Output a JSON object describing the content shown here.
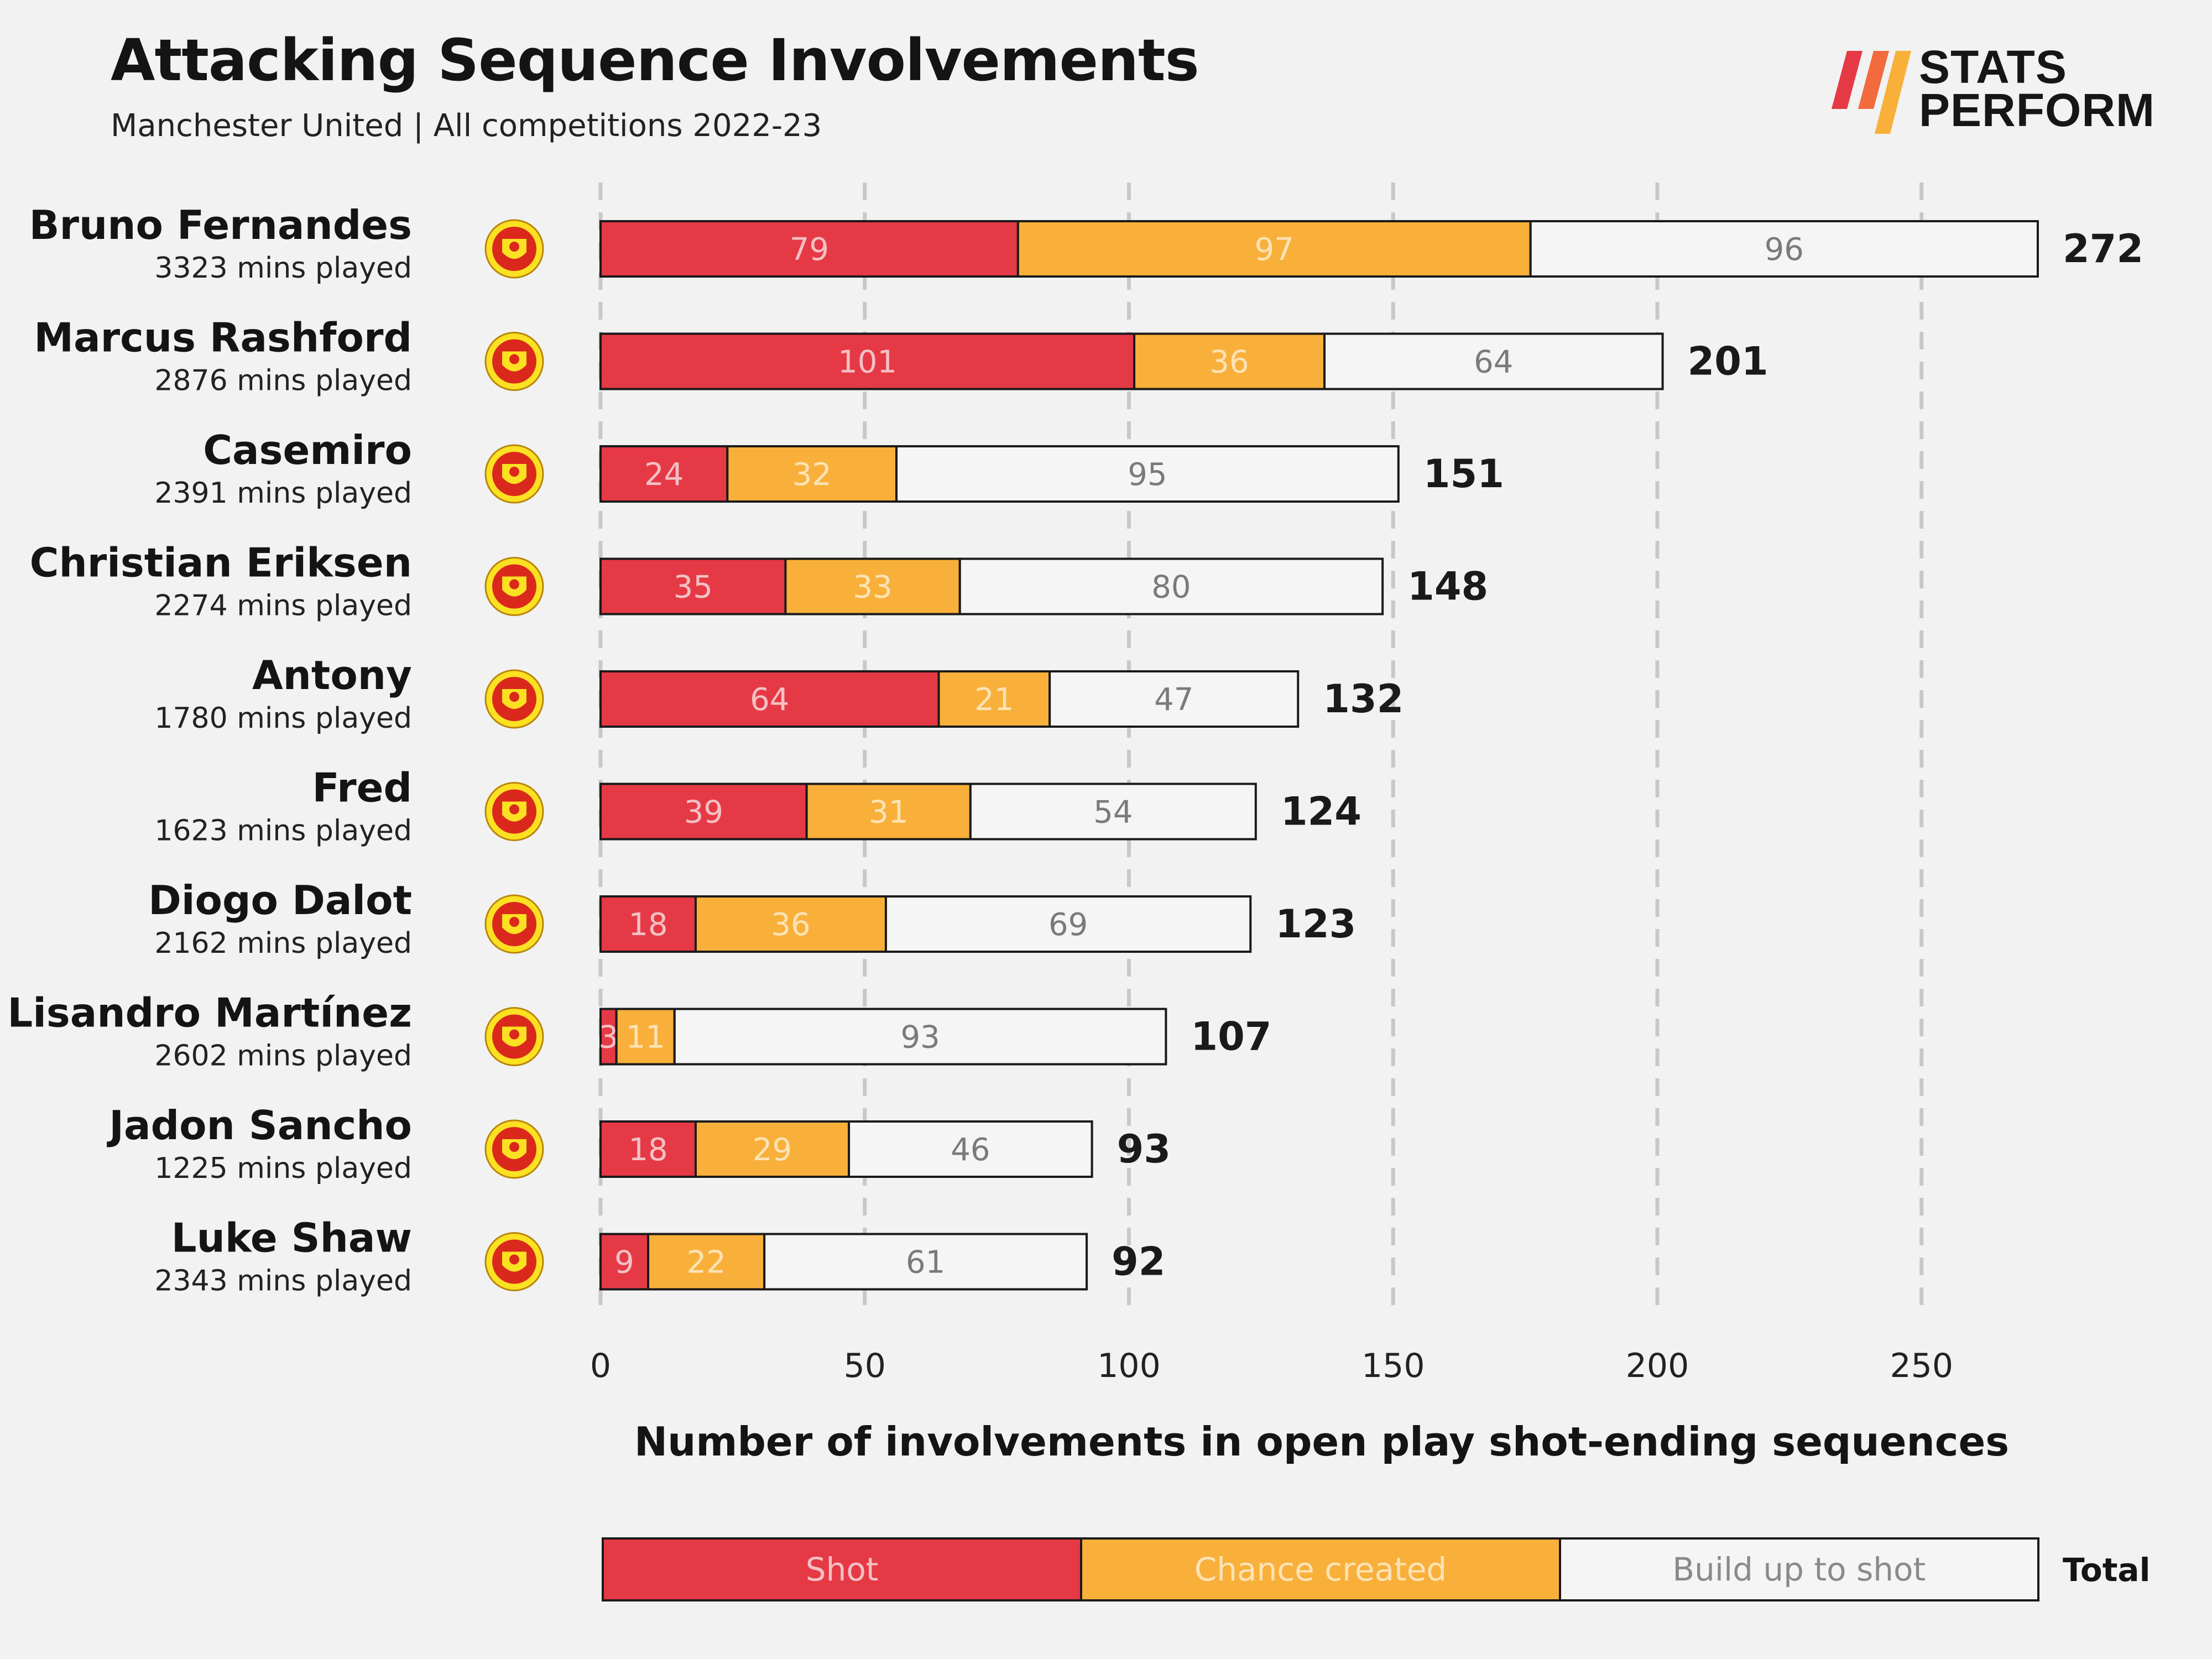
{
  "title": "Attacking Sequence Involvements",
  "subtitle": "Manchester United | All competitions 2022-23",
  "brand": {
    "line1": "STATS",
    "line2": "PERFORM"
  },
  "colors": {
    "shot": "#e63946",
    "chance": "#f8b03b",
    "buildup": "#f5f5f5",
    "border": "#1a1a1a",
    "grid": "#c8c8c8",
    "crest_red": "#da291c",
    "crest_gold": "#fbe122"
  },
  "chart_data": {
    "type": "bar",
    "orientation": "horizontal",
    "stacked": true,
    "xlabel": "Number of involvements in open play shot-ending sequences",
    "xlim": [
      0,
      272
    ],
    "xticks": [
      0,
      50,
      100,
      150,
      200,
      250
    ],
    "grid": "vertical dashed",
    "categories": [
      "Bruno Fernandes",
      "Marcus Rashford",
      "Casemiro",
      "Christian Eriksen",
      "Antony",
      "Fred",
      "Diogo Dalot",
      "Lisandro Martínez",
      "Jadon Sancho",
      "Luke Shaw"
    ],
    "minutes_labels": [
      "3323 mins played",
      "2876 mins played",
      "2391 mins played",
      "2274 mins played",
      "1780 mins played",
      "1623 mins played",
      "2162 mins played",
      "2602 mins played",
      "1225 mins played",
      "2343 mins played"
    ],
    "series": [
      {
        "name": "Shot",
        "values": [
          79,
          101,
          24,
          35,
          64,
          39,
          18,
          3,
          18,
          9
        ]
      },
      {
        "name": "Chance created",
        "values": [
          97,
          36,
          32,
          33,
          21,
          31,
          36,
          11,
          29,
          22
        ]
      },
      {
        "name": "Build up to shot",
        "values": [
          96,
          64,
          95,
          80,
          47,
          54,
          69,
          93,
          46,
          61
        ]
      }
    ],
    "totals_label": "Total",
    "totals": [
      272,
      201,
      151,
      148,
      132,
      124,
      123,
      107,
      93,
      92
    ],
    "legend_position": "bottom"
  }
}
